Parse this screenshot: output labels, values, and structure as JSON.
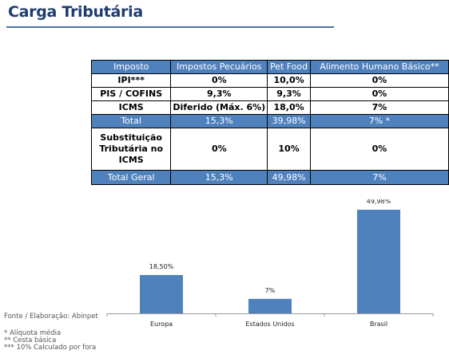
{
  "title": "Carga Tributária",
  "table": {
    "headers": [
      "Imposto",
      "Impostos Pecuários",
      "Pet Food",
      "Alimento Humano Básico**"
    ],
    "rows": [
      [
        "IPI***",
        "0%",
        "10,0%",
        "0%"
      ],
      [
        "PIS / COFINS",
        "9,3%",
        "9,3%",
        "0%"
      ],
      [
        "ICMS",
        "Diferido (Máx. 6%)",
        "18,0%",
        "7%"
      ]
    ],
    "total": [
      "Total",
      "15,3%",
      "39,98%",
      "7% *"
    ],
    "substituicao": [
      "Substituição Tributária no ICMS",
      "0%",
      "10%",
      "0%"
    ],
    "total_geral": [
      "Total Geral",
      "15,3%",
      "49,98%",
      "7%"
    ]
  },
  "chart_data": {
    "type": "bar",
    "categories": [
      "Europa",
      "Estados Unidos",
      "Brasil"
    ],
    "values": [
      18.5,
      7,
      49.98
    ],
    "data_labels": [
      "18,50%",
      "7%",
      "49,98%"
    ],
    "title": "",
    "xlabel": "",
    "ylabel": "",
    "ylim": [
      0,
      55
    ],
    "grid": false,
    "legend": "none",
    "bar_color": "#4f81bd"
  },
  "footer": {
    "source": "Fonte / Elaboração: Abinpet",
    "notes": [
      "* Alíquota média",
      "** Cesta básica",
      "*** 10% Calculado por fora"
    ]
  }
}
